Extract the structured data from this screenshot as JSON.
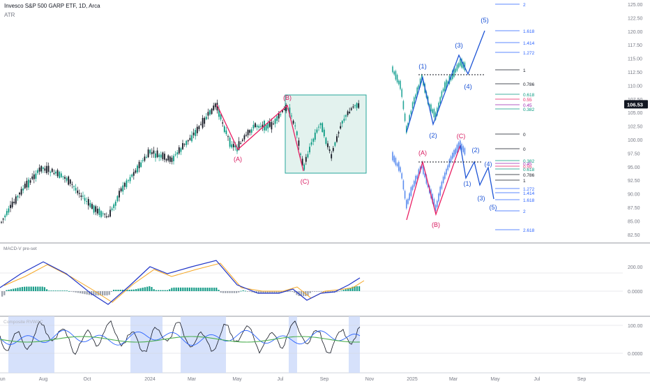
{
  "header": {
    "title": "Invesco S&P 500 GARP ETF, 1D, Arca",
    "indicator": "ATR"
  },
  "panes": {
    "macd_label": "MACD-V pre-set",
    "osc_label": "Composite   RVWAC"
  },
  "price_axis": [
    "125.00",
    "122.50",
    "120.00",
    "117.50",
    "115.00",
    "112.50",
    "110.00",
    "107.50",
    "105.00",
    "102.50",
    "100.00",
    "97.50",
    "95.00",
    "92.50",
    "90.00",
    "87.50",
    "85.00",
    "82.50"
  ],
  "last_price": "106.53",
  "macd_axis": [
    "200.00",
    "0.0000"
  ],
  "osc_axis": [
    "100.00",
    "0.0000"
  ],
  "time_axis": [
    "Jun",
    "Aug",
    "Oct",
    "2024",
    "Mar",
    "May",
    "Jul",
    "Sep",
    "Nov",
    "2025",
    "Mar",
    "May",
    "Jul",
    "Sep"
  ],
  "waves": {
    "past": [
      "(A)",
      "(B)",
      "(C)"
    ],
    "bull": [
      "(1)",
      "(2)",
      "(3)",
      "(4)",
      "(5)"
    ],
    "bear_abc": [
      "(A)",
      "(B)",
      "(C)"
    ],
    "bear_impulse": [
      "(1)",
      "(2)",
      "(3)",
      "(4)",
      "(5)"
    ]
  },
  "fib_upper": [
    {
      "label": "2",
      "color": "#2962ff"
    },
    {
      "label": "1.618",
      "color": "#2962ff"
    },
    {
      "label": "1.414",
      "color": "#2962ff"
    },
    {
      "label": "1.272",
      "color": "#2962ff"
    },
    {
      "label": "1",
      "color": "#131722"
    },
    {
      "label": "0.786",
      "color": "#131722"
    },
    {
      "label": "0.618",
      "color": "#089981"
    },
    {
      "label": "0.55",
      "color": "#e91e63"
    },
    {
      "label": "0.45",
      "color": "#9c27b0"
    },
    {
      "label": "0.382",
      "color": "#089981"
    },
    {
      "label": "0",
      "color": "#131722"
    }
  ],
  "fib_lower": [
    {
      "label": "0",
      "color": "#131722"
    },
    {
      "label": "0.382",
      "color": "#089981"
    },
    {
      "label": "0.45",
      "color": "#9c27b0"
    },
    {
      "label": "0.55",
      "color": "#e91e63"
    },
    {
      "label": "0.618",
      "color": "#089981"
    },
    {
      "label": "0.786",
      "color": "#131722"
    },
    {
      "label": "1",
      "color": "#131722"
    },
    {
      "label": "1.272",
      "color": "#2962ff"
    },
    {
      "label": "1.414",
      "color": "#2962ff"
    },
    {
      "label": "1.618",
      "color": "#2962ff"
    },
    {
      "label": "2",
      "color": "#2962ff"
    },
    {
      "label": "2.618",
      "color": "#2962ff"
    }
  ],
  "colors": {
    "up": "#089981",
    "down": "#131722",
    "pink": "#d81b60",
    "blue": "#1e55d6",
    "macd": "#2035c8",
    "signal": "#f5a623",
    "osc_green": "#4caf50",
    "shade": "#cfdcfa",
    "box": "#e3f2ee"
  }
}
